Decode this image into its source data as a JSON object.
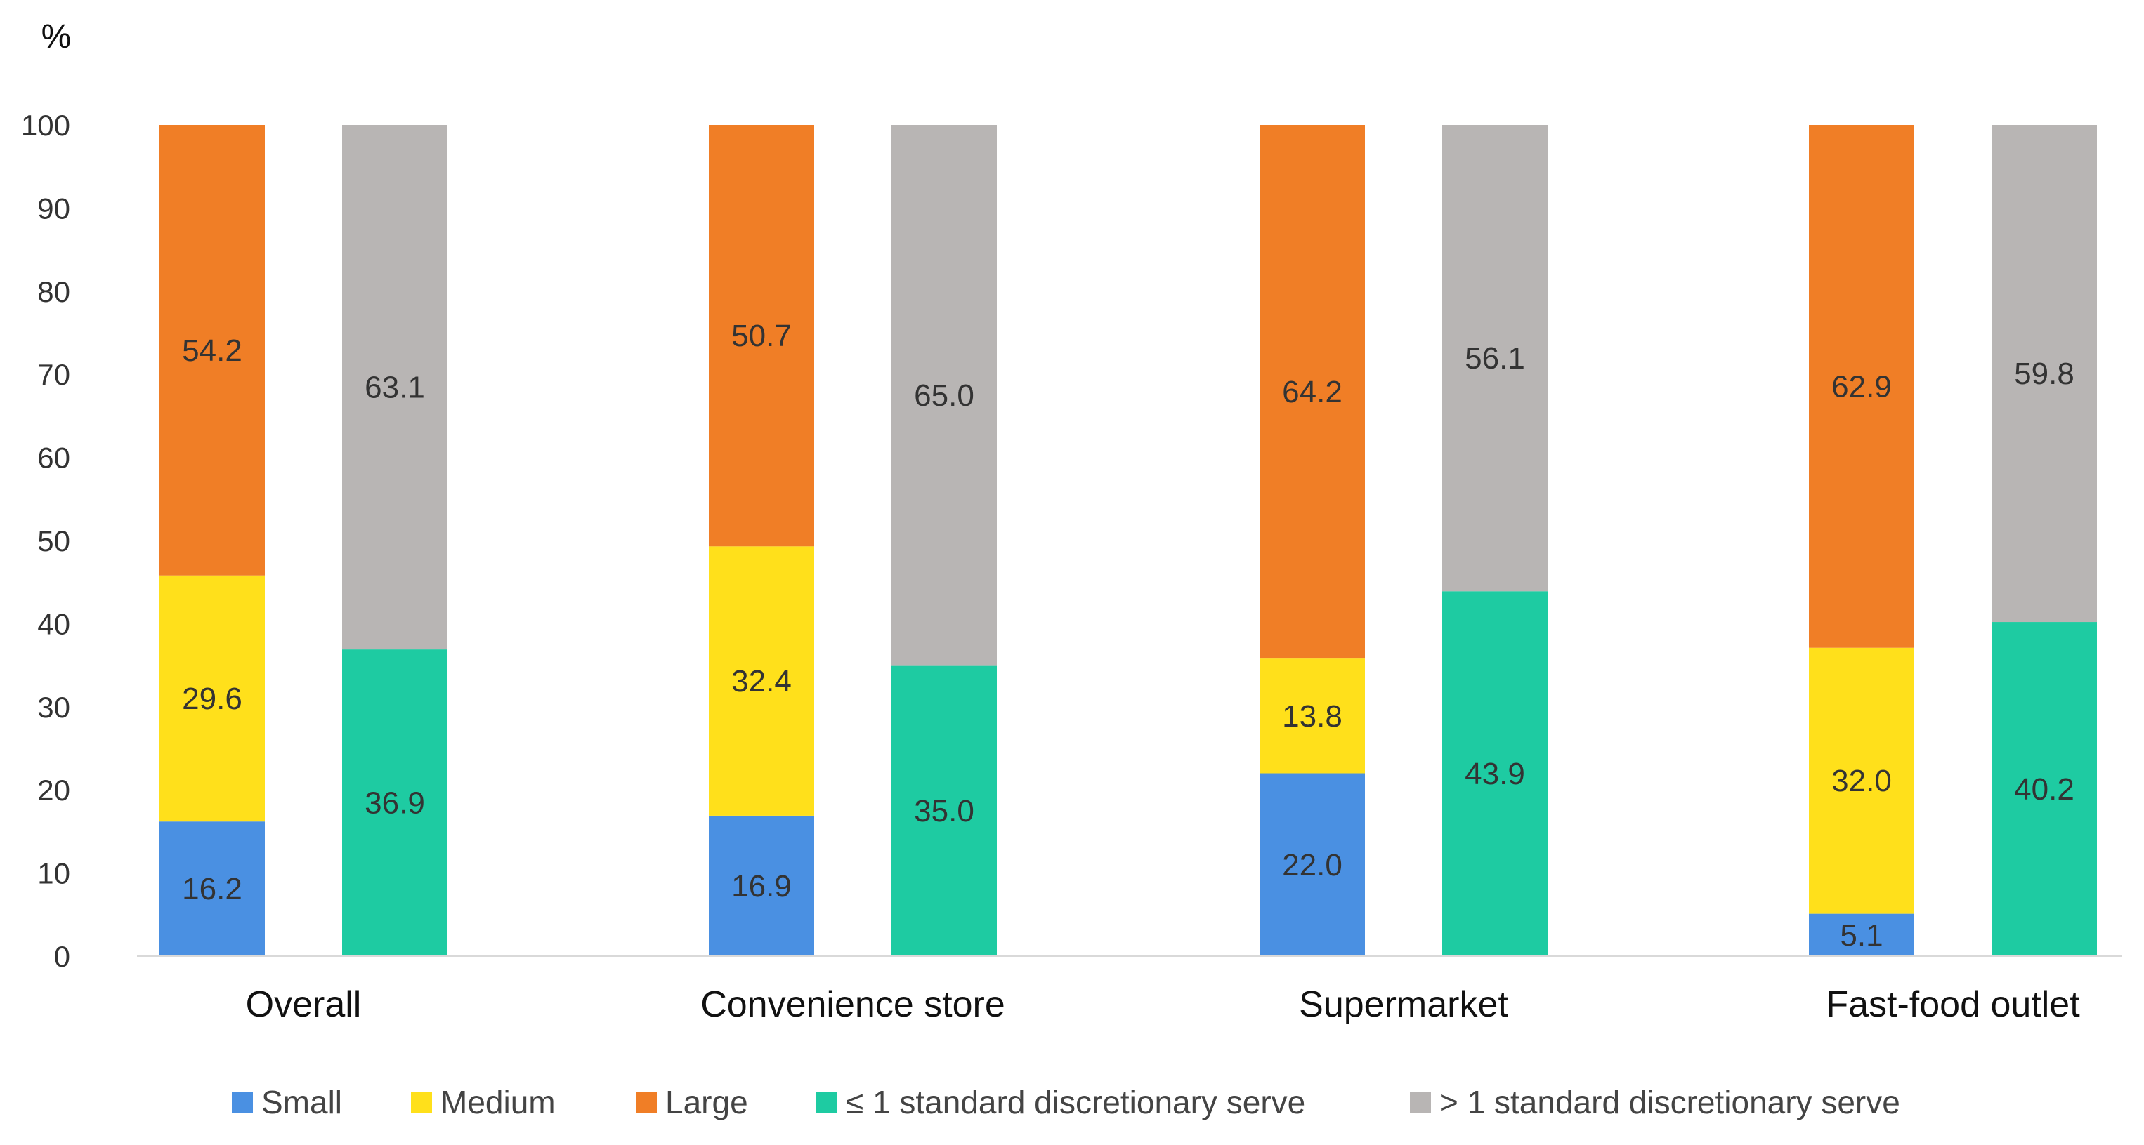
{
  "chart_data": {
    "type": "bar",
    "subtype": "stacked",
    "ylabel": "%",
    "ylim": [
      0,
      100
    ],
    "yticks": [
      0,
      10,
      20,
      30,
      40,
      50,
      60,
      70,
      80,
      90,
      100
    ],
    "categories": [
      "Overall",
      "Convenience store",
      "Supermarket",
      "Fast-food outlet"
    ],
    "stacks": [
      {
        "name": "size",
        "series": [
          {
            "name": "Small",
            "color": "#4a90e2",
            "values": [
              16.2,
              16.9,
              22.0,
              5.1
            ],
            "labels": [
              "16.2",
              "16.9",
              "22.0",
              "5.1"
            ]
          },
          {
            "name": "Medium",
            "color": "#ffe01b",
            "values": [
              29.6,
              32.4,
              13.8,
              32.0
            ],
            "labels": [
              "29.6",
              "32.4",
              "13.8",
              "32.0"
            ]
          },
          {
            "name": "Large",
            "color": "#f07e26",
            "values": [
              54.2,
              50.7,
              64.2,
              62.9
            ],
            "labels": [
              "54.2",
              "50.7",
              "64.2",
              "62.9"
            ]
          }
        ]
      },
      {
        "name": "serve",
        "series": [
          {
            "name": "≤ 1 standard discretionary serve",
            "color": "#1ecba2",
            "values": [
              36.9,
              35.0,
              43.9,
              40.2
            ],
            "labels": [
              "36.9",
              "35.0",
              "43.9",
              "40.2"
            ]
          },
          {
            "name": "> 1 standard discretionary serve",
            "color": "#b8b5b4",
            "values": [
              63.1,
              65.0,
              56.1,
              59.8
            ],
            "labels": [
              "63.1",
              "65.0",
              "56.1",
              "59.8"
            ]
          }
        ]
      }
    ],
    "legend": [
      "Small",
      "Medium",
      "Large",
      "≤ 1 standard discretionary serve",
      "> 1 standard discretionary serve"
    ],
    "legend_position": "bottom",
    "grid": false
  }
}
